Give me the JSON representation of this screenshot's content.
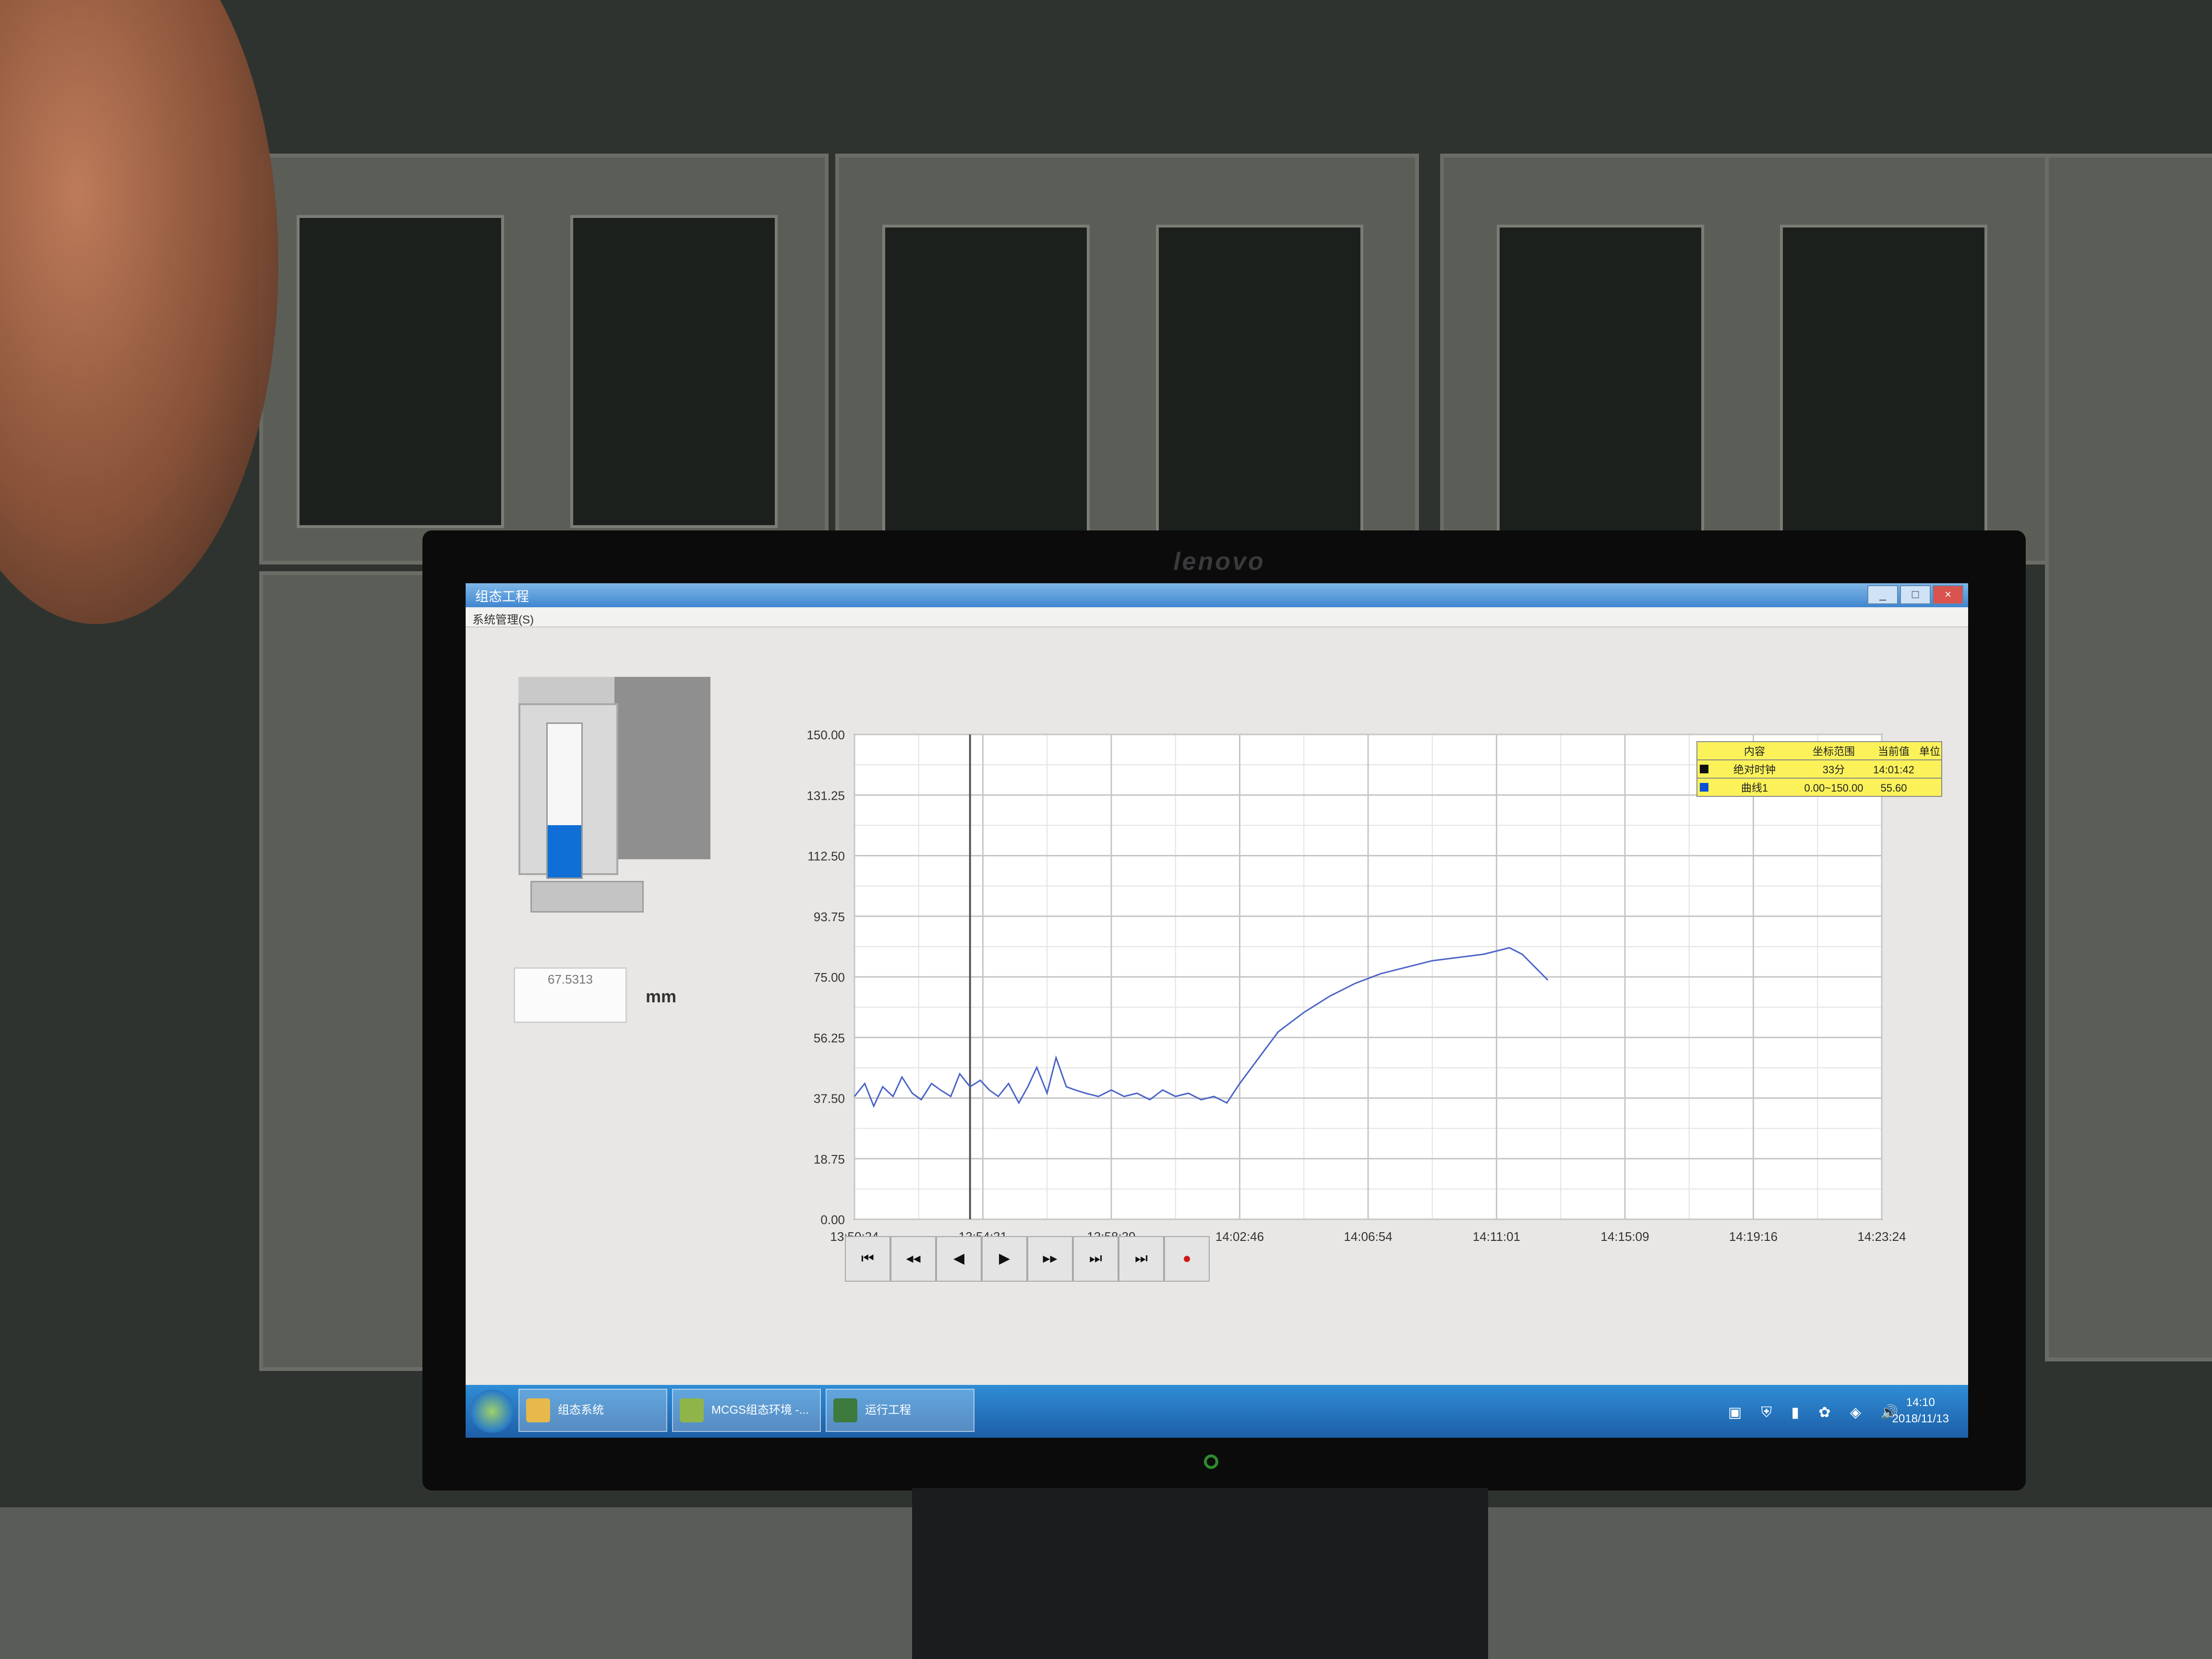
{
  "window": {
    "title": "组态工程",
    "menu": "系统管理(S)"
  },
  "tank": {
    "level_fraction": 0.34,
    "fill_color": "#0f6fd6",
    "value": "67.5313",
    "unit": "mm"
  },
  "chart_data": {
    "type": "line",
    "title": "",
    "xlabel": "",
    "ylabel": "",
    "y_ticks": [
      "150.00",
      "131.25",
      "112.50",
      "93.75",
      "75.00",
      "56.25",
      "37.50",
      "18.75",
      "0.00"
    ],
    "x_ticks": [
      "13:50:24",
      "13:54:31",
      "13:58:39",
      "14:02:46",
      "14:06:54",
      "14:11:01",
      "14:15:09",
      "14:19:16",
      "14:23:24"
    ],
    "ylim": [
      0,
      150
    ],
    "xlim": [
      0,
      8
    ],
    "grid": true,
    "cursor_x": 0.9,
    "series": [
      {
        "color": "#4a63c8",
        "x": [
          0,
          0.08,
          0.15,
          0.22,
          0.3,
          0.37,
          0.45,
          0.52,
          0.6,
          0.67,
          0.75,
          0.82,
          0.9,
          0.98,
          1.05,
          1.12,
          1.2,
          1.28,
          1.35,
          1.42,
          1.5,
          1.57,
          1.65,
          1.72,
          1.8,
          1.9,
          2.0,
          2.1,
          2.2,
          2.3,
          2.4,
          2.5,
          2.6,
          2.7,
          2.8,
          2.9,
          3.0,
          3.15,
          3.3,
          3.5,
          3.7,
          3.9,
          4.1,
          4.3,
          4.5,
          4.7,
          4.9,
          5.0,
          5.1,
          5.2,
          5.3,
          5.4
        ],
        "y": [
          38,
          42,
          35,
          41,
          38,
          44,
          39,
          37,
          42,
          40,
          38,
          45,
          41,
          43,
          40,
          38,
          42,
          36,
          41,
          47,
          39,
          50,
          41,
          40,
          39,
          38,
          40,
          38,
          39,
          37,
          40,
          38,
          39,
          37,
          38,
          36,
          42,
          50,
          58,
          64,
          69,
          73,
          76,
          78,
          80,
          81,
          82,
          83,
          84,
          82,
          78,
          74
        ]
      }
    ],
    "legend_table": {
      "headers": [
        "内容",
        "坐标范围",
        "当前值",
        "单位"
      ],
      "rows": [
        {
          "swatch": "#111111",
          "cells": [
            "绝对时钟",
            "33分",
            "14:01:42",
            ""
          ]
        },
        {
          "swatch": "#0a4fd8",
          "cells": [
            "曲线1",
            "0.00~150.00",
            "55.60",
            ""
          ]
        }
      ]
    }
  },
  "nav": {
    "first": "⏮",
    "prev_page": "◂◂",
    "prev": "◀",
    "next": "▶",
    "next_page": "▸▸",
    "last": "⏭",
    "jump": "⏭",
    "stop": "●"
  },
  "taskbar": {
    "tasks": [
      "组态系统",
      "MCGS组态环境 -...",
      "运行工程"
    ],
    "clock_time": "14:10",
    "clock_date": "2018/11/13"
  },
  "monitor": {
    "brand": "lenovo"
  }
}
